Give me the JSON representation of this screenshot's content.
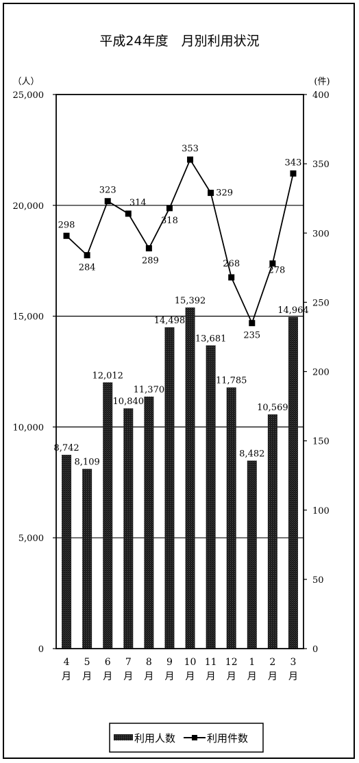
{
  "chart_data": {
    "type": "bar",
    "title": "平成24年度　月別利用状況",
    "categories": [
      {
        "num": "4",
        "unit": "月"
      },
      {
        "num": "5",
        "unit": "月"
      },
      {
        "num": "6",
        "unit": "月"
      },
      {
        "num": "7",
        "unit": "月"
      },
      {
        "num": "8",
        "unit": "月"
      },
      {
        "num": "9",
        "unit": "月"
      },
      {
        "num": "10",
        "unit": "月"
      },
      {
        "num": "11",
        "unit": "月"
      },
      {
        "num": "12",
        "unit": "月"
      },
      {
        "num": "1",
        "unit": "月"
      },
      {
        "num": "2",
        "unit": "月"
      },
      {
        "num": "3",
        "unit": "月"
      }
    ],
    "y_left": {
      "unit": "（人）",
      "ylim": [
        0,
        25000
      ],
      "ticks": [
        "0",
        "5,000",
        "10,000",
        "15,000",
        "20,000",
        "25,000"
      ]
    },
    "y_right": {
      "unit": "(件)",
      "ylim": [
        0,
        400
      ],
      "ticks": [
        "0",
        "50",
        "100",
        "150",
        "200",
        "250",
        "300",
        "350",
        "400"
      ]
    },
    "gridlines_left": [
      5000,
      10000,
      15000,
      20000
    ],
    "series": [
      {
        "name": "利用人数",
        "type": "bar",
        "axis": "left",
        "values": [
          8742,
          8109,
          12012,
          10840,
          11370,
          14498,
          15392,
          13681,
          11785,
          8482,
          10569,
          14964
        ],
        "labels": [
          "8,742",
          "8,109",
          "12,012",
          "10,840",
          "11,370",
          "14,498",
          "15,392",
          "13,681",
          "11,785",
          "8,482",
          "10,569",
          "14,964"
        ]
      },
      {
        "name": "利用件数",
        "type": "line",
        "axis": "right",
        "values": [
          298,
          284,
          323,
          314,
          289,
          318,
          353,
          329,
          268,
          235,
          278,
          343
        ],
        "labels": [
          "298",
          "284",
          "323",
          "314",
          "289",
          "318",
          "353",
          "329",
          "268",
          "235",
          "278",
          "343"
        ]
      }
    ],
    "legend": {
      "position": "bottom",
      "items": [
        "利用人数",
        "利用件数"
      ]
    }
  }
}
